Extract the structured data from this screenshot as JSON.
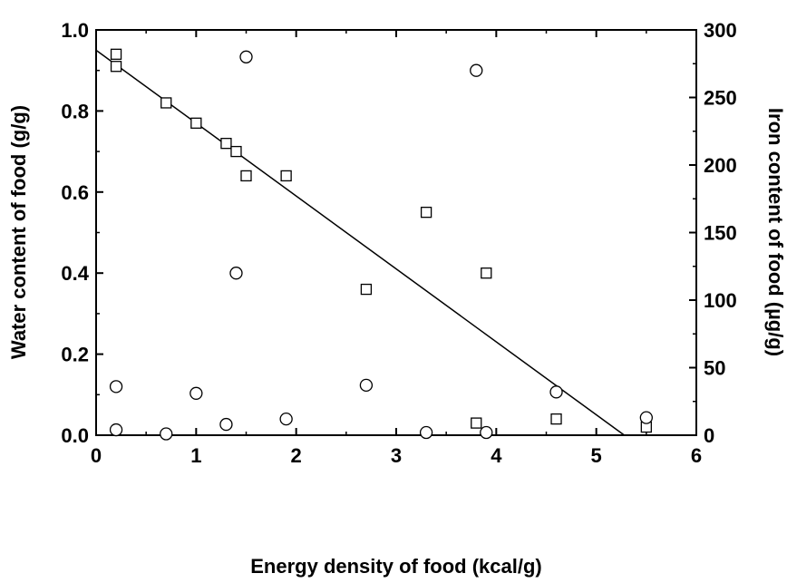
{
  "chart_data": {
    "type": "scatter",
    "xlabel": "Energy density of food (kcal/g)",
    "ylabel": "Water content of food (g/g)",
    "y2label": "Iron content of food (µg/g)",
    "xlim": [
      0,
      6
    ],
    "ylim": [
      0,
      1.0
    ],
    "y2lim": [
      0,
      300
    ],
    "grid": false,
    "xticks": [
      0,
      1,
      2,
      3,
      4,
      5,
      6
    ],
    "yticks": [
      0.0,
      0.2,
      0.4,
      0.6,
      0.8,
      1.0
    ],
    "y2ticks": [
      0,
      50,
      100,
      150,
      200,
      250,
      300
    ],
    "series": [
      {
        "marker": "square",
        "axis": "left",
        "x": [
          0.2,
          0.2,
          0.7,
          1.0,
          1.3,
          1.4,
          1.5,
          1.9,
          2.7,
          3.3,
          3.8,
          3.9,
          4.6,
          5.5
        ],
        "y": [
          0.94,
          0.91,
          0.82,
          0.77,
          0.72,
          0.7,
          0.64,
          0.64,
          0.36,
          0.55,
          0.03,
          0.4,
          0.04,
          0.02
        ]
      },
      {
        "marker": "circle",
        "axis": "right",
        "x": [
          0.2,
          0.2,
          0.7,
          1.0,
          1.3,
          1.4,
          1.5,
          1.9,
          2.7,
          3.3,
          3.8,
          3.9,
          4.6,
          5.5
        ],
        "y": [
          4,
          36,
          1,
          31,
          8,
          120,
          280,
          12,
          37,
          2,
          270,
          2,
          32,
          13
        ]
      }
    ],
    "fit_line": {
      "axis": "left",
      "x": [
        0,
        5.28
      ],
      "y": [
        0.95,
        0.0
      ]
    }
  }
}
